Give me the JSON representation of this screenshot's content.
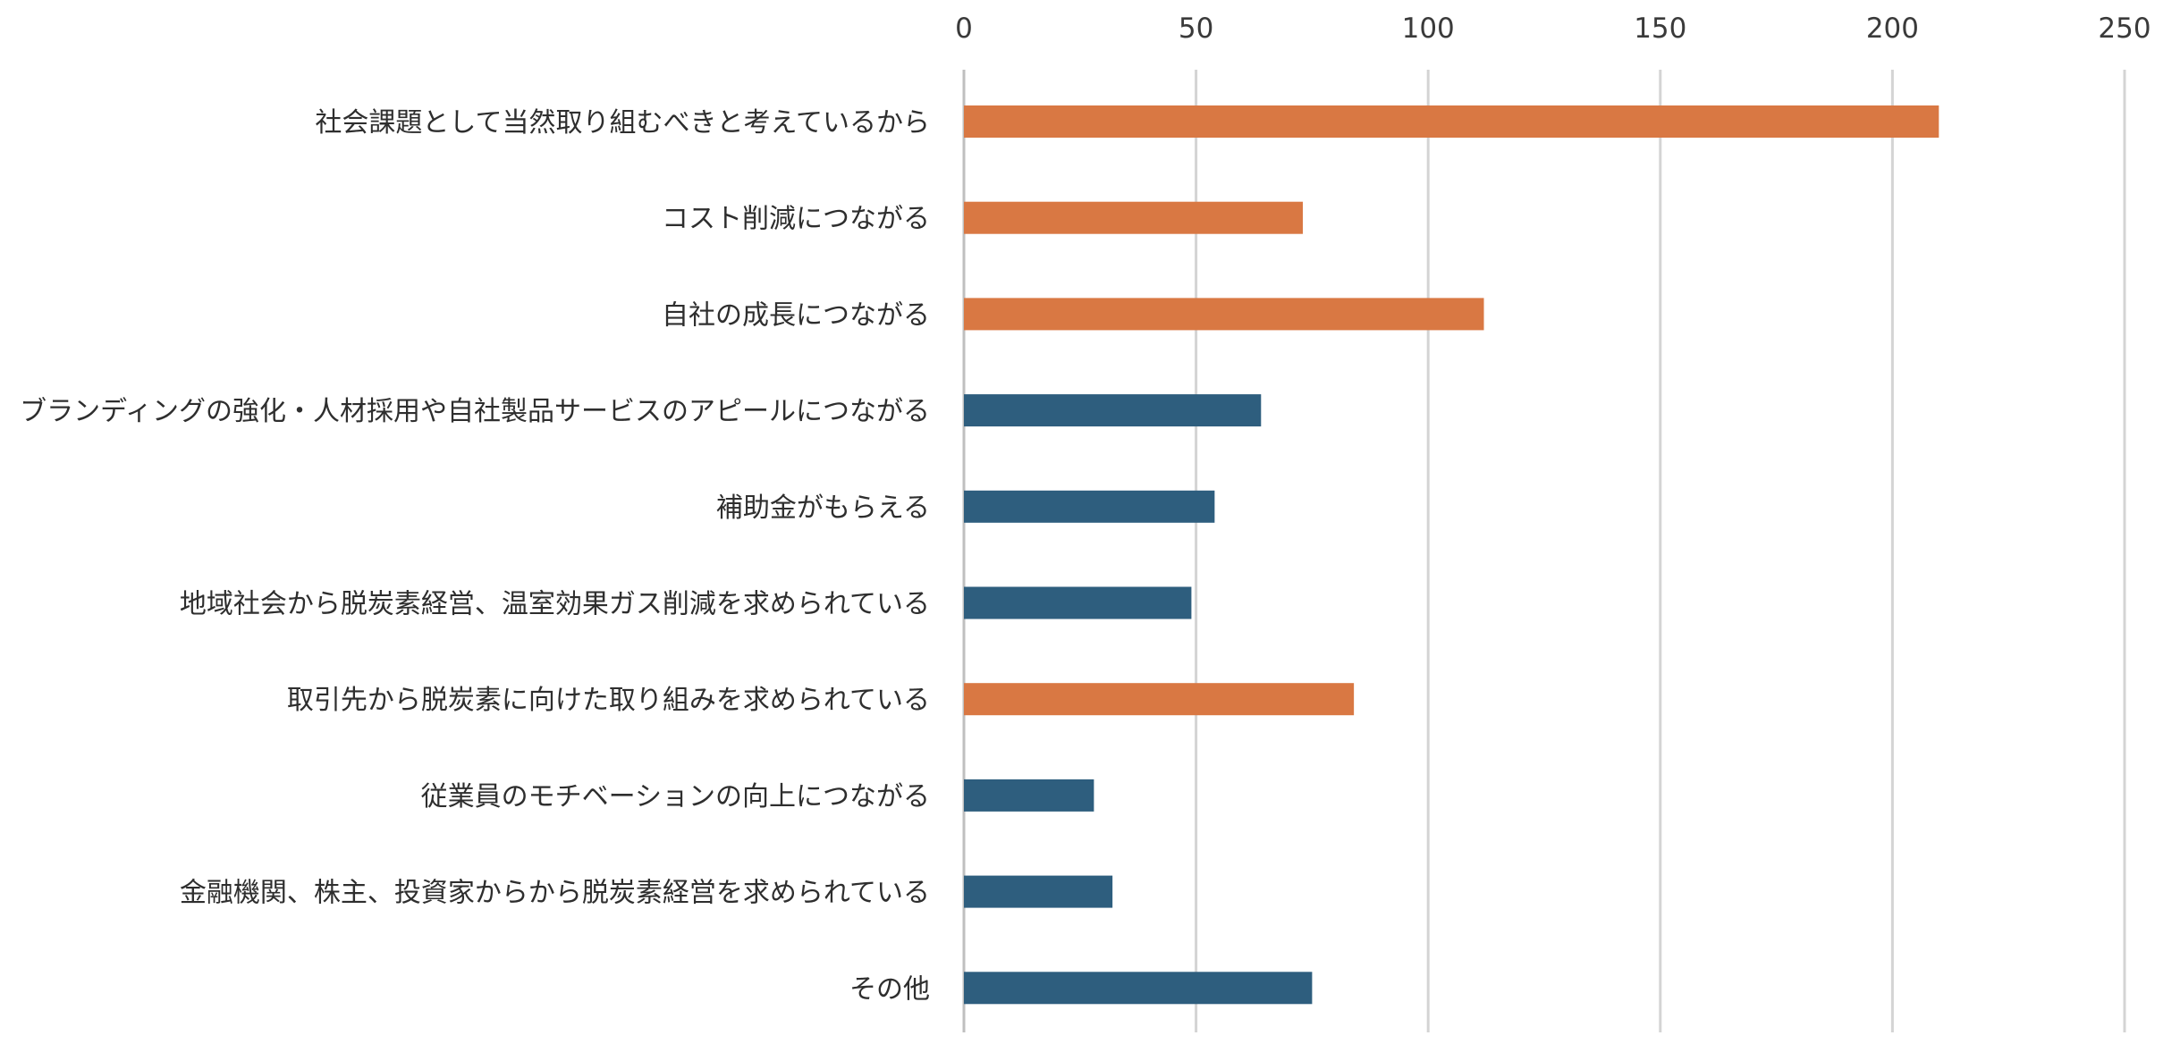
{
  "chart_data": {
    "type": "bar",
    "orientation": "horizontal",
    "title": "",
    "xlabel": "",
    "ylabel": "",
    "xlim": [
      0,
      250
    ],
    "ticks": [
      0,
      50,
      100,
      150,
      200,
      250
    ],
    "grid": true,
    "legend": "none",
    "categories": [
      "社会課題として当然取り組むべきと考えているから",
      "コスト削減につながる",
      "自社の成長につながる",
      "ブランディングの強化・人材採用や自社製品サービスのアピールにつながる",
      "補助金がもらえる",
      "地域社会から脱炭素経営、温室効果ガス削減を求められている",
      "取引先から脱炭素に向けた取り組みを求められている",
      "従業員のモチベーションの向上につながる",
      "金融機関、株主、投資家からから脱炭素経営を求められている",
      "その他"
    ],
    "values": [
      210,
      73,
      112,
      64,
      54,
      49,
      84,
      28,
      32,
      75
    ],
    "bar_colors": [
      "#d97843",
      "#d97843",
      "#d97843",
      "#2e5e7e",
      "#2e5e7e",
      "#2e5e7e",
      "#d97843",
      "#2e5e7e",
      "#2e5e7e",
      "#2e5e7e"
    ]
  }
}
